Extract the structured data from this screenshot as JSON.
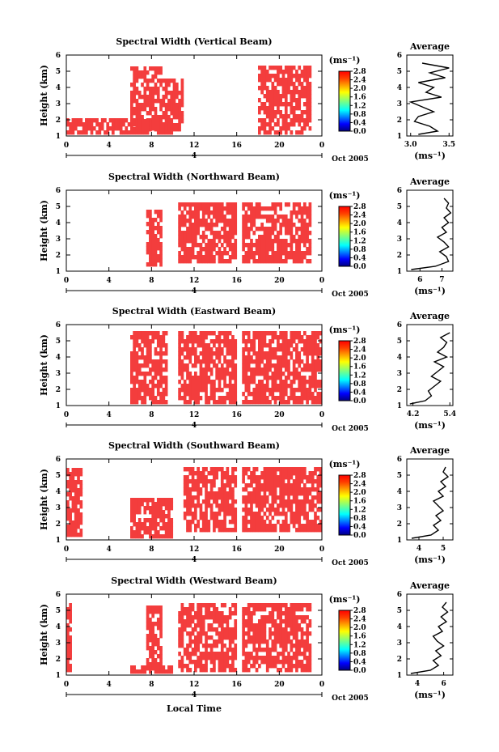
{
  "figure": {
    "xlabel": "Local Time",
    "date_label": "Oct 2005",
    "colorbar_unit": "(ms⁻¹)",
    "average_title": "Average"
  },
  "chart_data": [
    {
      "type": "heatmap",
      "title": "Spectral Width (Vertical Beam)",
      "ylabel": "Height (km)",
      "xlabel": "Local Time",
      "x_ticks": [
        "0",
        "4",
        "8",
        "12",
        "16",
        "20",
        "0"
      ],
      "y_ticks": [
        "1",
        "2",
        "3",
        "4",
        "5",
        "6"
      ],
      "date_tick": "4",
      "date_label": "Oct 2005",
      "colorbar": {
        "unit": "(ms⁻¹)",
        "ticks": [
          "2.8",
          "2.4",
          "2.0",
          "1.6",
          "1.2",
          "0.8",
          "0.4",
          "0.0"
        ]
      },
      "x_range": [
        0,
        24
      ],
      "y_range": [
        1,
        6
      ],
      "filled_regions": [
        {
          "x": [
            0,
            10
          ],
          "y": [
            1.1,
            2.0
          ]
        },
        {
          "x": [
            6,
            9
          ],
          "y": [
            1.3,
            5.4
          ]
        },
        {
          "x": [
            9,
            11
          ],
          "y": [
            1.3,
            4.5
          ]
        },
        {
          "x": [
            18,
            23
          ],
          "y": [
            1.1,
            5.4
          ]
        }
      ],
      "average": {
        "title": "Average",
        "xlabel": "(ms⁻¹)",
        "x_ticks": [
          "3.0",
          "3.5"
        ],
        "xlim": [
          2.95,
          3.55
        ],
        "ylim": [
          1,
          6
        ],
        "heights": [
          1.1,
          1.3,
          1.6,
          1.9,
          2.2,
          2.5,
          2.8,
          3.1,
          3.4,
          3.7,
          4.0,
          4.3,
          4.6,
          4.9,
          5.2,
          5.5
        ],
        "values": [
          3.1,
          3.35,
          3.25,
          3.05,
          3.1,
          3.3,
          3.15,
          3.0,
          3.4,
          3.2,
          3.3,
          3.1,
          3.45,
          3.25,
          3.5,
          3.15
        ]
      }
    },
    {
      "type": "heatmap",
      "title": "Spectral Width (Northward Beam)",
      "ylabel": "Height (km)",
      "xlabel": "Local Time",
      "x_ticks": [
        "0",
        "4",
        "8",
        "12",
        "16",
        "20",
        "0"
      ],
      "y_ticks": [
        "1",
        "2",
        "3",
        "4",
        "5",
        "6"
      ],
      "date_tick": "4",
      "date_label": "Oct 2005",
      "colorbar": {
        "unit": "(ms⁻¹)",
        "ticks": [
          "2.8",
          "2.4",
          "2.0",
          "1.6",
          "1.2",
          "0.8",
          "0.4",
          "0.0"
        ]
      },
      "x_range": [
        0,
        24
      ],
      "y_range": [
        1,
        6
      ],
      "filled_regions": [
        {
          "x": [
            7.5,
            9
          ],
          "y": [
            1.3,
            4.7
          ]
        },
        {
          "x": [
            10.5,
            16
          ],
          "y": [
            1.5,
            5.3
          ]
        },
        {
          "x": [
            16.5,
            23
          ],
          "y": [
            1.5,
            5.3
          ]
        }
      ],
      "average": {
        "title": "Average",
        "xlabel": "(ms⁻¹)",
        "x_ticks": [
          "6",
          "7"
        ],
        "xlim": [
          5.4,
          7.5
        ],
        "ylim": [
          1,
          6
        ],
        "heights": [
          1.1,
          1.3,
          1.6,
          1.9,
          2.2,
          2.5,
          2.8,
          3.1,
          3.4,
          3.7,
          4.0,
          4.3,
          4.6,
          4.9,
          5.2,
          5.5
        ],
        "values": [
          5.6,
          6.7,
          7.3,
          7.2,
          6.9,
          7.3,
          7.1,
          6.8,
          7.2,
          7.0,
          7.3,
          7.1,
          7.4,
          7.2,
          7.3,
          7.1
        ]
      }
    },
    {
      "type": "heatmap",
      "title": "Spectral Width (Eastward Beam)",
      "ylabel": "Height (km)",
      "xlabel": "Local Time",
      "x_ticks": [
        "0",
        "4",
        "8",
        "12",
        "16",
        "20",
        "0"
      ],
      "y_ticks": [
        "1",
        "2",
        "3",
        "4",
        "5",
        "6"
      ],
      "date_tick": "4",
      "date_label": "Oct 2005",
      "colorbar": {
        "unit": "(ms⁻¹)",
        "ticks": [
          "2.8",
          "2.4",
          "2.0",
          "1.6",
          "1.2",
          "0.8",
          "0.4",
          "0.0"
        ]
      },
      "x_range": [
        0,
        24
      ],
      "y_range": [
        1,
        6
      ],
      "filled_regions": [
        {
          "x": [
            6,
            9.5
          ],
          "y": [
            1.1,
            5.6
          ]
        },
        {
          "x": [
            10.5,
            16
          ],
          "y": [
            1.1,
            5.6
          ]
        },
        {
          "x": [
            16.5,
            24
          ],
          "y": [
            1.1,
            5.6
          ]
        }
      ],
      "average": {
        "title": "Average",
        "xlabel": "(ms⁻¹)",
        "x_ticks": [
          "4.2",
          "5.4"
        ],
        "xlim": [
          4.0,
          5.5
        ],
        "ylim": [
          1,
          6
        ],
        "heights": [
          1.1,
          1.3,
          1.6,
          1.9,
          2.2,
          2.5,
          2.8,
          3.1,
          3.4,
          3.7,
          4.0,
          4.3,
          4.6,
          4.9,
          5.2,
          5.5
        ],
        "values": [
          4.1,
          4.6,
          4.8,
          4.7,
          4.9,
          5.1,
          4.8,
          5.0,
          5.2,
          4.9,
          5.3,
          5.0,
          5.2,
          5.3,
          5.1,
          5.4
        ]
      }
    },
    {
      "type": "heatmap",
      "title": "Spectral Width (Southward Beam)",
      "ylabel": "Height (km)",
      "xlabel": "Local Time",
      "x_ticks": [
        "0",
        "4",
        "8",
        "12",
        "16",
        "20",
        "0"
      ],
      "y_ticks": [
        "1",
        "2",
        "3",
        "4",
        "5",
        "6"
      ],
      "date_tick": "4",
      "date_label": "Oct 2005",
      "colorbar": {
        "unit": "(ms⁻¹)",
        "ticks": [
          "2.8",
          "2.4",
          "2.0",
          "1.6",
          "1.2",
          "0.8",
          "0.4",
          "0.0"
        ]
      },
      "x_range": [
        0,
        24
      ],
      "y_range": [
        1,
        6
      ],
      "filled_regions": [
        {
          "x": [
            0,
            1.5
          ],
          "y": [
            1.2,
            5.4
          ]
        },
        {
          "x": [
            6,
            10
          ],
          "y": [
            1.1,
            3.5
          ]
        },
        {
          "x": [
            11,
            16
          ],
          "y": [
            1.5,
            5.5
          ]
        },
        {
          "x": [
            16.5,
            24
          ],
          "y": [
            1.5,
            5.5
          ]
        }
      ],
      "average": {
        "title": "Average",
        "xlabel": "(ms⁻¹)",
        "x_ticks": [
          "4",
          "5"
        ],
        "xlim": [
          3.5,
          5.4
        ],
        "ylim": [
          1,
          6
        ],
        "heights": [
          1.1,
          1.3,
          1.6,
          1.9,
          2.2,
          2.5,
          2.8,
          3.1,
          3.4,
          3.7,
          4.0,
          4.3,
          4.6,
          4.9,
          5.2,
          5.5
        ],
        "values": [
          3.7,
          4.5,
          4.8,
          4.6,
          4.9,
          4.7,
          5.0,
          4.8,
          4.6,
          5.0,
          4.8,
          5.1,
          4.9,
          5.2,
          5.0,
          5.1
        ]
      }
    },
    {
      "type": "heatmap",
      "title": "Spectral Width (Westward Beam)",
      "ylabel": "Height (km)",
      "xlabel": "Local Time",
      "x_ticks": [
        "0",
        "4",
        "8",
        "12",
        "16",
        "20",
        "0"
      ],
      "y_ticks": [
        "1",
        "2",
        "3",
        "4",
        "5",
        "6"
      ],
      "date_tick": "4",
      "date_label": "Oct 2005",
      "colorbar": {
        "unit": "(ms⁻¹)",
        "ticks": [
          "2.8",
          "2.4",
          "2.0",
          "1.6",
          "1.2",
          "0.8",
          "0.4",
          "0.0"
        ]
      },
      "x_range": [
        0,
        24
      ],
      "y_range": [
        1,
        6
      ],
      "filled_regions": [
        {
          "x": [
            0,
            0.5
          ],
          "y": [
            1.2,
            5.4
          ]
        },
        {
          "x": [
            6,
            10
          ],
          "y": [
            1.1,
            1.7
          ]
        },
        {
          "x": [
            7.5,
            9
          ],
          "y": [
            1.3,
            5.4
          ]
        },
        {
          "x": [
            10.5,
            16
          ],
          "y": [
            1.2,
            5.5
          ]
        },
        {
          "x": [
            16.5,
            23
          ],
          "y": [
            1.2,
            5.5
          ]
        }
      ],
      "average": {
        "title": "Average",
        "xlabel": "(ms⁻¹)",
        "x_ticks": [
          "4",
          "6"
        ],
        "xlim": [
          3.2,
          6.7
        ],
        "ylim": [
          1,
          6
        ],
        "heights": [
          1.1,
          1.3,
          1.6,
          1.9,
          2.2,
          2.5,
          2.8,
          3.1,
          3.4,
          3.7,
          4.0,
          4.3,
          4.6,
          4.9,
          5.2,
          5.5
        ],
        "values": [
          3.5,
          5.0,
          5.6,
          5.2,
          5.8,
          5.4,
          6.0,
          5.5,
          5.2,
          5.9,
          5.6,
          6.2,
          5.8,
          6.3,
          5.9,
          6.2
        ]
      }
    }
  ]
}
